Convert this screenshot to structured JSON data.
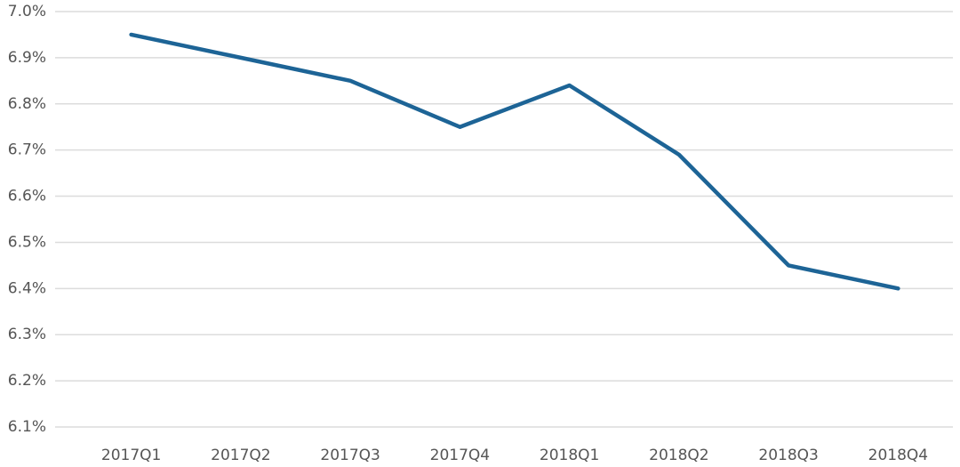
{
  "chart_data": {
    "type": "line",
    "categories": [
      "2017Q1",
      "2017Q2",
      "2017Q3",
      "2017Q4",
      "2018Q1",
      "2018Q2",
      "2018Q3",
      "2018Q4"
    ],
    "series": [
      {
        "color": "#1d6496",
        "values": [
          6.95,
          6.9,
          6.85,
          6.75,
          6.84,
          6.69,
          6.45,
          6.4
        ]
      }
    ],
    "ylim": [
      6.1,
      7.0
    ],
    "yticks": [
      {
        "value": 6.1,
        "label": "6.1%"
      },
      {
        "value": 6.2,
        "label": "6.2%"
      },
      {
        "value": 6.3,
        "label": "6.3%"
      },
      {
        "value": 6.4,
        "label": "6.4%"
      },
      {
        "value": 6.5,
        "label": "6.5%"
      },
      {
        "value": 6.6,
        "label": "6.6%"
      },
      {
        "value": 6.7,
        "label": "6.7%"
      },
      {
        "value": 6.8,
        "label": "6.8%"
      },
      {
        "value": 6.9,
        "label": "6.9%"
      },
      {
        "value": 7.0,
        "label": "7.0%"
      }
    ],
    "grid": true
  }
}
